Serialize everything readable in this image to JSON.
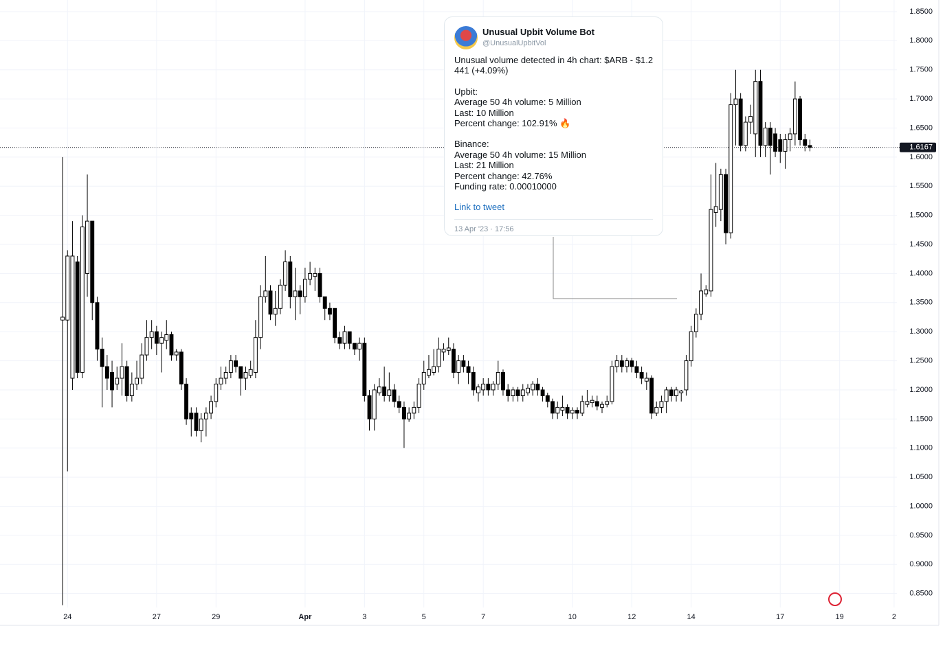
{
  "chart_data": {
    "type": "candlestick",
    "up_color": "#ffffff",
    "down_color": "#000000",
    "edge_color": "#000000",
    "grid": true,
    "xlim": [
      -12.64,
      176.9
    ],
    "ylim": [
      0.826,
      1.87
    ],
    "xticks": [
      {
        "value": 1,
        "label": "24"
      },
      {
        "value": 19,
        "label": "27"
      },
      {
        "value": 31,
        "label": "29"
      },
      {
        "value": 49,
        "label": "Apr"
      },
      {
        "value": 61,
        "label": "3"
      },
      {
        "value": 73,
        "label": "5"
      },
      {
        "value": 85,
        "label": "7"
      },
      {
        "value": 103,
        "label": "10"
      },
      {
        "value": 115,
        "label": "12"
      },
      {
        "value": 127,
        "label": "14"
      },
      {
        "value": 145,
        "label": "17"
      },
      {
        "value": 157,
        "label": "19"
      },
      {
        "value": 168,
        "label": "2"
      }
    ],
    "yticks": [
      {
        "value": 0.85,
        "label": "0.8500"
      },
      {
        "value": 0.9,
        "label": "0.9000"
      },
      {
        "value": 0.95,
        "label": "0.9500"
      },
      {
        "value": 1.0,
        "label": "1.0000"
      },
      {
        "value": 1.05,
        "label": "1.0500"
      },
      {
        "value": 1.1,
        "label": "1.1000"
      },
      {
        "value": 1.15,
        "label": "1.1500"
      },
      {
        "value": 1.2,
        "label": "1.2000"
      },
      {
        "value": 1.25,
        "label": "1.2500"
      },
      {
        "value": 1.3,
        "label": "1.3000"
      },
      {
        "value": 1.35,
        "label": "1.3500"
      },
      {
        "value": 1.4,
        "label": "1.4000"
      },
      {
        "value": 1.45,
        "label": "1.4500"
      },
      {
        "value": 1.5,
        "label": "1.5000"
      },
      {
        "value": 1.55,
        "label": "1.5500"
      },
      {
        "value": 1.6,
        "label": "1.6000"
      },
      {
        "value": 1.65,
        "label": "1.6500"
      },
      {
        "value": 1.7,
        "label": "1.7000"
      },
      {
        "value": 1.75,
        "label": "1.7500"
      },
      {
        "value": 1.8,
        "label": "1.8000"
      },
      {
        "value": 1.85,
        "label": "1.8500"
      }
    ],
    "open": [
      1.32,
      1.32,
      1.22,
      1.42,
      1.23,
      1.4,
      1.49,
      1.35,
      1.27,
      1.24,
      1.23,
      1.21,
      1.22,
      1.24,
      1.19,
      1.21,
      1.22,
      1.26,
      1.29,
      1.3,
      1.28,
      1.285,
      1.295,
      1.26,
      1.265,
      1.21,
      1.16,
      1.16,
      1.13,
      1.15,
      1.16,
      1.18,
      1.21,
      1.22,
      1.23,
      1.25,
      1.24,
      1.22,
      1.225,
      1.23,
      1.29,
      1.36,
      1.37,
      1.33,
      1.34,
      1.38,
      1.42,
      1.36,
      1.37,
      1.36,
      1.39,
      1.395,
      1.4,
      1.36,
      1.34,
      1.34,
      1.29,
      1.28,
      1.3,
      1.28,
      1.27,
      1.28,
      1.19,
      1.15,
      1.195,
      1.205,
      1.19,
      1.2,
      1.18,
      1.17,
      1.15,
      1.16,
      1.17,
      1.21,
      1.225,
      1.23,
      1.24,
      1.265,
      1.268,
      1.27,
      1.23,
      1.25,
      1.24,
      1.23,
      1.195,
      1.2,
      1.21,
      1.2,
      1.21,
      1.23,
      1.2,
      1.19,
      1.2,
      1.19,
      1.195,
      1.2,
      1.21,
      1.2,
      1.19,
      1.18,
      1.16,
      1.165,
      1.17,
      1.16,
      1.165,
      1.16,
      1.175,
      1.178,
      1.18,
      1.17,
      1.175,
      1.18,
      1.24,
      1.25,
      1.24,
      1.25,
      1.24,
      1.23,
      1.215,
      1.22,
      1.16,
      1.17,
      1.18,
      1.2,
      1.19,
      1.195,
      1.2,
      1.25,
      1.3,
      1.33,
      1.365,
      1.37,
      1.505,
      1.51,
      1.57,
      1.47,
      1.69,
      1.7,
      1.62,
      1.66,
      1.64,
      1.73,
      1.62,
      1.65,
      1.64,
      1.63,
      1.61,
      1.63,
      1.64,
      1.7,
      1.63,
      1.62
    ],
    "high": [
      1.6,
      1.44,
      1.49,
      1.43,
      1.5,
      1.57,
      1.49,
      1.36,
      1.29,
      1.26,
      1.25,
      1.24,
      1.28,
      1.25,
      1.23,
      1.25,
      1.28,
      1.32,
      1.32,
      1.31,
      1.3,
      1.32,
      1.3,
      1.27,
      1.27,
      1.22,
      1.17,
      1.17,
      1.16,
      1.17,
      1.19,
      1.22,
      1.24,
      1.24,
      1.26,
      1.26,
      1.24,
      1.24,
      1.25,
      1.32,
      1.38,
      1.43,
      1.38,
      1.37,
      1.39,
      1.44,
      1.43,
      1.41,
      1.38,
      1.41,
      1.42,
      1.41,
      1.41,
      1.36,
      1.35,
      1.34,
      1.3,
      1.31,
      1.3,
      1.28,
      1.29,
      1.29,
      1.2,
      1.21,
      1.22,
      1.24,
      1.23,
      1.21,
      1.19,
      1.18,
      1.17,
      1.18,
      1.22,
      1.25,
      1.26,
      1.27,
      1.29,
      1.28,
      1.29,
      1.28,
      1.26,
      1.26,
      1.25,
      1.24,
      1.21,
      1.22,
      1.22,
      1.215,
      1.25,
      1.235,
      1.21,
      1.205,
      1.205,
      1.21,
      1.21,
      1.215,
      1.22,
      1.205,
      1.195,
      1.185,
      1.18,
      1.19,
      1.175,
      1.17,
      1.17,
      1.19,
      1.2,
      1.19,
      1.19,
      1.18,
      1.19,
      1.25,
      1.26,
      1.26,
      1.255,
      1.255,
      1.25,
      1.24,
      1.23,
      1.225,
      1.18,
      1.19,
      1.205,
      1.205,
      1.205,
      1.2,
      1.26,
      1.31,
      1.34,
      1.4,
      1.38,
      1.57,
      1.59,
      1.58,
      1.58,
      1.71,
      1.75,
      1.71,
      1.67,
      1.69,
      1.75,
      1.75,
      1.66,
      1.66,
      1.65,
      1.64,
      1.64,
      1.65,
      1.73,
      1.705,
      1.64,
      1.63
    ],
    "low": [
      0.83,
      1.06,
      1.2,
      1.22,
      1.22,
      1.36,
      1.32,
      1.25,
      1.17,
      1.2,
      1.17,
      1.2,
      1.19,
      1.18,
      1.18,
      1.2,
      1.21,
      1.25,
      1.27,
      1.26,
      1.23,
      1.27,
      1.25,
      1.25,
      1.2,
      1.14,
      1.12,
      1.12,
      1.11,
      1.12,
      1.15,
      1.17,
      1.2,
      1.21,
      1.22,
      1.23,
      1.19,
      1.2,
      1.22,
      1.22,
      1.27,
      1.35,
      1.32,
      1.31,
      1.33,
      1.37,
      1.34,
      1.32,
      1.33,
      1.35,
      1.38,
      1.37,
      1.35,
      1.32,
      1.32,
      1.28,
      1.27,
      1.27,
      1.27,
      1.26,
      1.25,
      1.18,
      1.13,
      1.13,
      1.19,
      1.18,
      1.18,
      1.17,
      1.16,
      1.1,
      1.145,
      1.15,
      1.16,
      1.2,
      1.22,
      1.225,
      1.23,
      1.25,
      1.26,
      1.22,
      1.21,
      1.23,
      1.21,
      1.19,
      1.18,
      1.19,
      1.19,
      1.19,
      1.2,
      1.19,
      1.18,
      1.18,
      1.18,
      1.18,
      1.19,
      1.19,
      1.19,
      1.18,
      1.17,
      1.15,
      1.15,
      1.155,
      1.15,
      1.15,
      1.15,
      1.155,
      1.17,
      1.17,
      1.165,
      1.16,
      1.17,
      1.175,
      1.23,
      1.23,
      1.23,
      1.23,
      1.22,
      1.21,
      1.2,
      1.15,
      1.155,
      1.16,
      1.16,
      1.18,
      1.18,
      1.18,
      1.19,
      1.24,
      1.29,
      1.32,
      1.36,
      1.36,
      1.48,
      1.49,
      1.45,
      1.46,
      1.62,
      1.61,
      1.61,
      1.64,
      1.6,
      1.6,
      1.6,
      1.57,
      1.6,
      1.59,
      1.58,
      1.61,
      1.62,
      1.62,
      1.61,
      1.61
    ],
    "close": [
      1.325,
      1.43,
      1.43,
      1.23,
      1.48,
      1.49,
      1.35,
      1.27,
      1.24,
      1.22,
      1.2,
      1.22,
      1.24,
      1.19,
      1.21,
      1.22,
      1.26,
      1.29,
      1.3,
      1.28,
      1.29,
      1.295,
      1.26,
      1.265,
      1.21,
      1.15,
      1.15,
      1.13,
      1.15,
      1.16,
      1.18,
      1.21,
      1.22,
      1.23,
      1.25,
      1.24,
      1.22,
      1.23,
      1.235,
      1.29,
      1.36,
      1.37,
      1.33,
      1.34,
      1.38,
      1.42,
      1.36,
      1.37,
      1.36,
      1.39,
      1.4,
      1.4,
      1.36,
      1.34,
      1.33,
      1.29,
      1.28,
      1.3,
      1.28,
      1.27,
      1.28,
      1.19,
      1.15,
      1.2,
      1.205,
      1.19,
      1.2,
      1.18,
      1.17,
      1.15,
      1.16,
      1.17,
      1.21,
      1.23,
      1.235,
      1.24,
      1.27,
      1.27,
      1.272,
      1.23,
      1.25,
      1.24,
      1.23,
      1.2,
      1.205,
      1.21,
      1.2,
      1.21,
      1.23,
      1.2,
      1.19,
      1.2,
      1.19,
      1.2,
      1.203,
      1.21,
      1.2,
      1.19,
      1.18,
      1.16,
      1.17,
      1.17,
      1.16,
      1.165,
      1.16,
      1.18,
      1.18,
      1.182,
      1.172,
      1.175,
      1.18,
      1.24,
      1.25,
      1.24,
      1.25,
      1.24,
      1.23,
      1.22,
      1.22,
      1.16,
      1.17,
      1.18,
      1.2,
      1.19,
      1.2,
      1.198,
      1.25,
      1.3,
      1.33,
      1.37,
      1.372,
      1.51,
      1.515,
      1.57,
      1.47,
      1.69,
      1.7,
      1.62,
      1.66,
      1.67,
      1.73,
      1.62,
      1.65,
      1.62,
      1.61,
      1.61,
      1.63,
      1.64,
      1.7,
      1.63,
      1.62,
      1.6167
    ]
  },
  "tweet": {
    "name": "Unusual Upbit Volume Bot",
    "handle": "@UnusualUpbitVol",
    "intro": "Unusual volume detected in 4h chart: $ARB - $1.2441 (+4.09%)",
    "upbit": [
      "Upbit:",
      "Average 50 4h volume: 5 Million",
      "Last: 10 Million",
      "Percent change: 102.91% 🔥"
    ],
    "binance": [
      "Binance:",
      "Average 50 4h volume: 15 Million",
      "Last: 21 Million",
      "Percent change: 42.76%",
      "Funding rate: 0.00010000"
    ],
    "link": "Link to tweet",
    "date": "13 Apr '23 · 17:56"
  }
}
